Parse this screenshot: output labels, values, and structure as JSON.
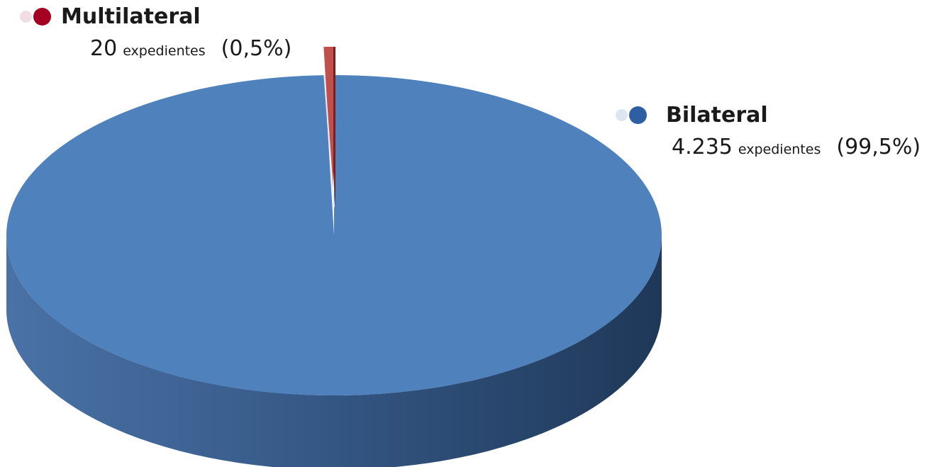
{
  "chart_data": {
    "type": "pie",
    "style": "3d",
    "slices": [
      {
        "name": "Bilateral",
        "value": 4235,
        "unit": "expedientes",
        "percent_label": "(99,5%)",
        "count_label": "4.235",
        "color": "#4f81bd"
      },
      {
        "name": "Multilateral",
        "value": 20,
        "unit": "expedientes",
        "percent_label": "(0,5%)",
        "count_label": "20",
        "color": "#c0504d"
      }
    ]
  },
  "legend": {
    "multilateral": {
      "name": "Multilateral",
      "count": "20",
      "unit": "expedientes",
      "percent": "(0,5%)",
      "dot_color": "#a50021",
      "faint_color": "#f2dde2"
    },
    "bilateral": {
      "name": "Bilateral",
      "count": "4.235",
      "unit": "expedientes",
      "percent": "(99,5%)",
      "dot_color": "#2e5fa3",
      "faint_color": "#dce6f2"
    }
  }
}
